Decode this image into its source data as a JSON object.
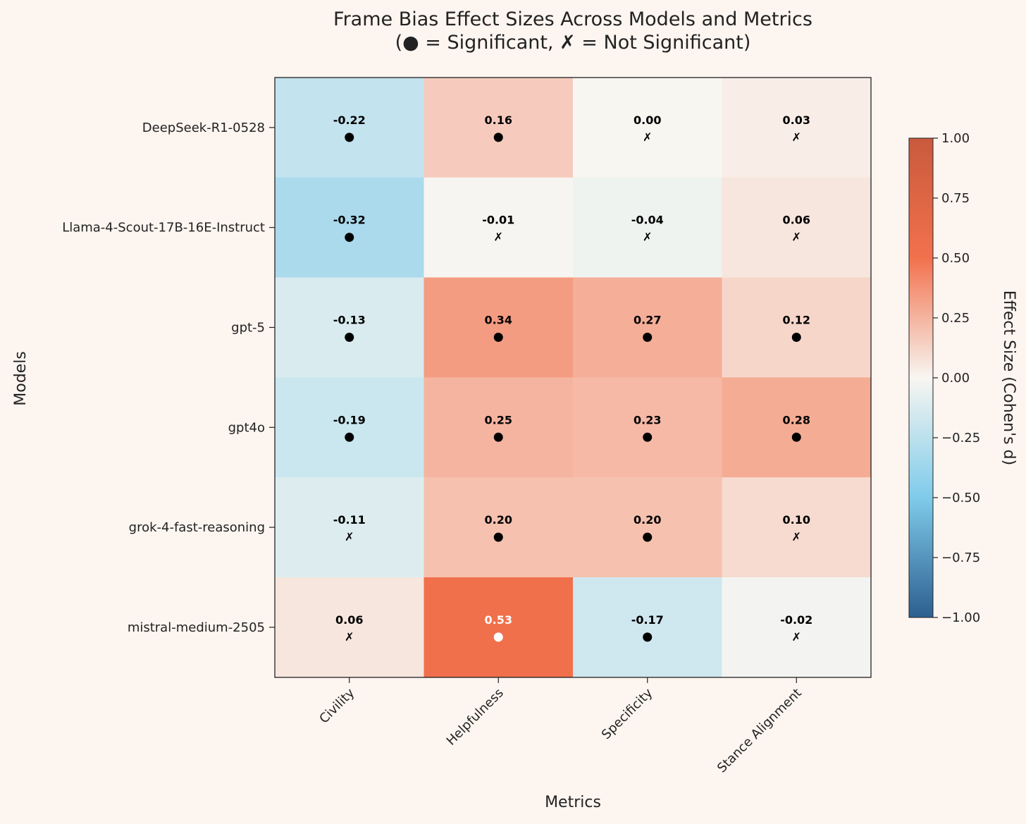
{
  "chart_data": {
    "type": "heatmap",
    "title_line1": "Frame Bias Effect Sizes Across Models and Metrics",
    "title_line2": "(● = Significant, ✗ = Not Significant)",
    "xlabel": "Metrics",
    "ylabel": "Models",
    "colorbar_label": "Effect Size (Cohen's d)",
    "colorbar_range": [
      -1.0,
      1.0
    ],
    "colorbar_ticks": [
      "1.00",
      "0.75",
      "0.50",
      "0.25",
      "0.00",
      "−0.25",
      "−0.50",
      "−0.75",
      "−1.00"
    ],
    "colorbar_tick_values": [
      1.0,
      0.75,
      0.5,
      0.25,
      0.0,
      -0.25,
      -0.5,
      -0.75,
      -1.0
    ],
    "metrics": [
      "Civility",
      "Helpfulness",
      "Specificity",
      "Stance Alignment"
    ],
    "models": [
      "DeepSeek-R1-0528",
      "Llama-4-Scout-17B-16E-Instruct",
      "gpt-5",
      "gpt4o",
      "grok-4-fast-reasoning",
      "mistral-medium-2505"
    ],
    "values": [
      [
        -0.22,
        0.16,
        0.0,
        0.03
      ],
      [
        -0.32,
        -0.01,
        -0.04,
        0.06
      ],
      [
        -0.13,
        0.34,
        0.27,
        0.12
      ],
      [
        -0.19,
        0.25,
        0.23,
        0.28
      ],
      [
        -0.11,
        0.2,
        0.2,
        0.1
      ],
      [
        0.06,
        0.53,
        -0.17,
        -0.02
      ]
    ],
    "labels": [
      [
        "-0.22",
        "0.16",
        "0.00",
        "0.03"
      ],
      [
        "-0.32",
        "-0.01",
        "-0.04",
        "0.06"
      ],
      [
        "-0.13",
        "0.34",
        "0.27",
        "0.12"
      ],
      [
        "-0.19",
        "0.25",
        "0.23",
        "0.28"
      ],
      [
        "-0.11",
        "0.20",
        "0.20",
        "0.10"
      ],
      [
        "0.06",
        "0.53",
        "-0.17",
        "-0.02"
      ]
    ],
    "significant": [
      [
        true,
        true,
        false,
        false
      ],
      [
        true,
        false,
        false,
        false
      ],
      [
        true,
        true,
        true,
        true
      ],
      [
        true,
        true,
        true,
        true
      ],
      [
        false,
        true,
        true,
        false
      ],
      [
        false,
        true,
        true,
        false
      ]
    ],
    "marker_significant": "●",
    "marker_not_significant": "✗",
    "colors": {
      "neg_end": "#2c5f8f",
      "neg_mid": "#7fcbea",
      "center": "#f8f6f1",
      "pos_mid": "#f2714d",
      "pos_end": "#c95a3d"
    }
  }
}
